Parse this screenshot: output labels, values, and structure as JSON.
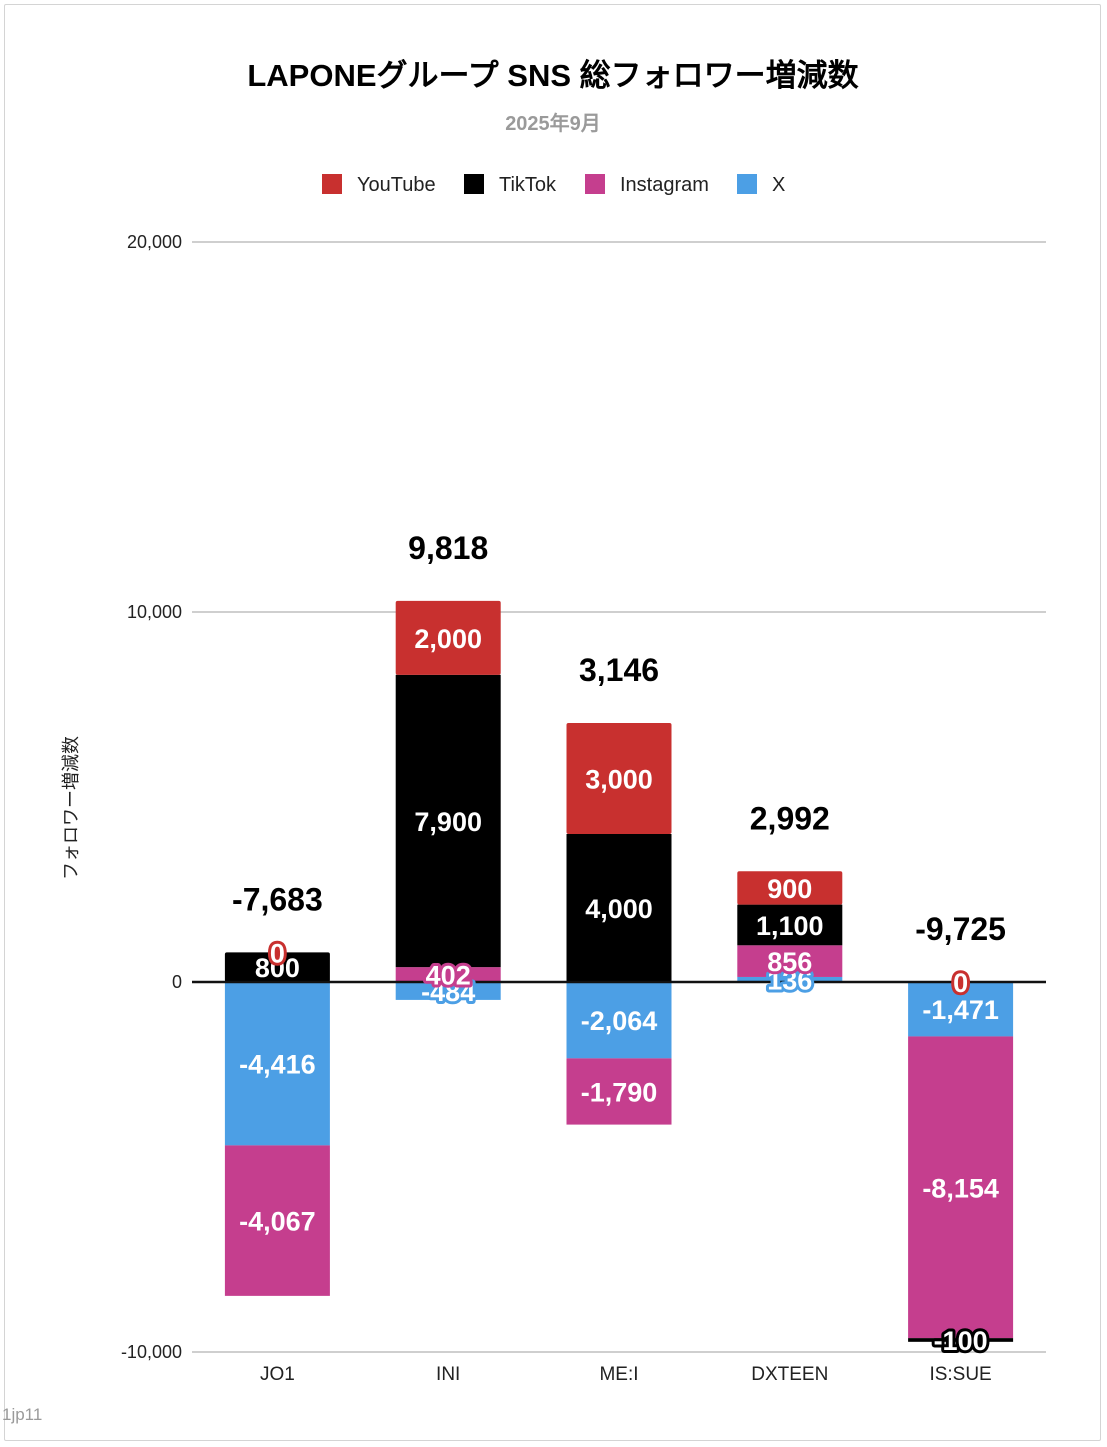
{
  "chart_data": {
    "type": "bar",
    "stacked": true,
    "title": "LAPONEグループ SNS 総フォロワー増減数",
    "subtitle": "2025年9月",
    "ylabel": "フォロワー増減数",
    "ylim": [
      -10000,
      20000
    ],
    "yticks": [
      {
        "value": 20000,
        "label": "20,000"
      },
      {
        "value": 10000,
        "label": "10,000"
      },
      {
        "value": 0,
        "label": "0"
      },
      {
        "value": -10000,
        "label": "-10,000"
      }
    ],
    "legend_position": "top",
    "categories": [
      "JO1",
      "INI",
      "ME:I",
      "DXTEEN",
      "IS:SUE"
    ],
    "series": [
      {
        "name": "YouTube",
        "color": "#c8302f",
        "values": [
          0,
          2000,
          3000,
          900,
          0
        ],
        "labels": [
          "0",
          "2,000",
          "3,000",
          "900",
          "0"
        ]
      },
      {
        "name": "TikTok",
        "color": "#000000",
        "values": [
          800,
          7900,
          4000,
          1100,
          -100
        ],
        "labels": [
          "800",
          "7,900",
          "4,000",
          "1,100",
          "-100"
        ]
      },
      {
        "name": "Instagram",
        "color": "#c53e8e",
        "values": [
          -4067,
          402,
          -1790,
          856,
          -8154
        ],
        "labels": [
          "-4,067",
          "402",
          "-1,790",
          "856",
          "-8,154"
        ]
      },
      {
        "name": "X",
        "color": "#4c9fe5",
        "values": [
          -4416,
          -484,
          -2064,
          136,
          -1471
        ],
        "labels": [
          "-4,416",
          "-484",
          "-2,064",
          "136",
          "-1,471"
        ]
      }
    ],
    "totals": [
      -7683,
      9818,
      3146,
      2992,
      -9725
    ],
    "total_labels": [
      "-7,683",
      "9,818",
      "3,146",
      "2,992",
      "-9,725"
    ]
  },
  "credit": "1jp11"
}
